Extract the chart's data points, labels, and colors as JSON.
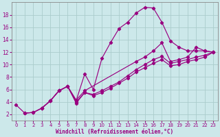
{
  "bg_color": "#cce8ea",
  "line_color": "#990080",
  "grid_color": "#aacccc",
  "xlabel": "Windchill (Refroidissement éolien,°C)",
  "xlim": [
    -0.5,
    23.5
  ],
  "ylim": [
    1.0,
    20.0
  ],
  "yticks": [
    2,
    4,
    6,
    8,
    10,
    12,
    14,
    16,
    18
  ],
  "xticks": [
    0,
    1,
    2,
    3,
    4,
    5,
    6,
    7,
    8,
    9,
    10,
    11,
    12,
    13,
    14,
    15,
    16,
    17,
    18,
    19,
    20,
    21,
    22,
    23
  ],
  "series1_x": [
    0,
    1,
    2,
    3,
    4,
    5,
    6,
    7,
    8,
    9,
    10,
    11,
    12,
    13,
    14,
    15,
    16,
    17,
    18,
    19,
    20,
    21,
    22,
    23
  ],
  "series1_y": [
    3.5,
    2.2,
    2.3,
    3.0,
    4.2,
    5.8,
    6.5,
    4.2,
    8.5,
    6.0,
    11.0,
    13.5,
    15.8,
    16.8,
    18.3,
    19.2,
    19.1,
    16.8,
    13.8,
    12.8,
    12.2,
    12.2,
    12.2,
    12.0
  ],
  "series2_x": [
    1,
    2,
    3,
    4,
    5,
    6,
    7,
    8,
    14,
    15,
    16,
    17,
    18,
    19,
    20,
    21,
    22,
    23
  ],
  "series2_y": [
    2.2,
    2.3,
    3.0,
    4.2,
    5.8,
    6.5,
    4.3,
    5.8,
    10.5,
    11.2,
    12.2,
    13.5,
    10.5,
    10.8,
    11.2,
    12.8,
    12.2,
    12.0
  ],
  "series3_x": [
    1,
    2,
    3,
    4,
    5,
    6,
    7,
    8,
    9,
    10,
    11,
    12,
    13,
    14,
    15,
    16,
    17,
    18,
    19,
    20,
    21,
    22,
    23
  ],
  "series3_y": [
    2.2,
    2.3,
    3.0,
    4.2,
    5.8,
    6.5,
    3.8,
    5.5,
    5.2,
    5.8,
    6.5,
    7.2,
    8.2,
    9.2,
    10.0,
    10.8,
    11.3,
    10.2,
    10.5,
    10.8,
    11.2,
    11.5,
    12.0
  ],
  "series4_x": [
    3,
    4,
    5,
    6,
    7,
    8,
    9,
    10,
    11,
    12,
    13,
    14,
    15,
    16,
    17,
    18,
    19,
    20,
    21,
    22,
    23
  ],
  "series4_y": [
    3.0,
    4.2,
    5.8,
    6.5,
    4.0,
    5.5,
    5.0,
    5.5,
    6.2,
    7.0,
    7.8,
    8.8,
    9.5,
    10.2,
    10.8,
    9.8,
    10.0,
    10.5,
    10.8,
    11.2,
    12.0
  ]
}
